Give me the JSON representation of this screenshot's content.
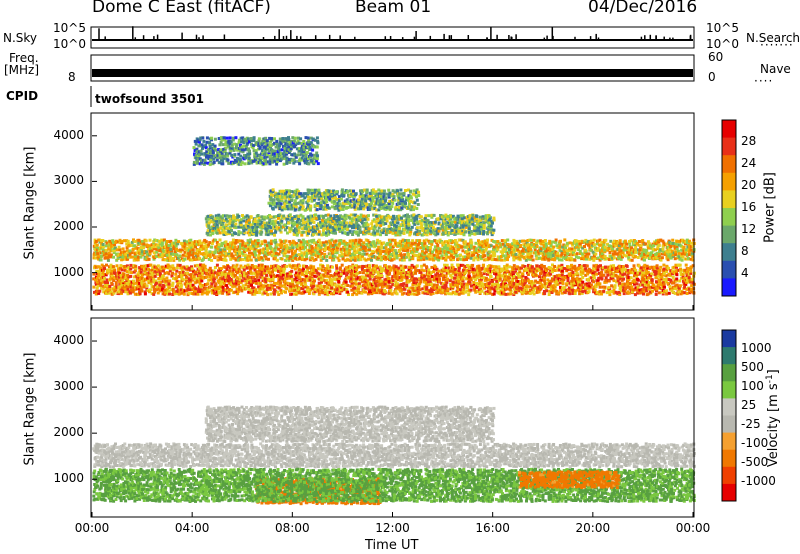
{
  "header": {
    "radar": "Dome C East (fitACF)",
    "beam": "Beam 01",
    "date": "04/Dec/2016"
  },
  "top_panels": {
    "nsky_label": "N.Sky",
    "nsky_tick_top": "10^5",
    "nsky_tick_bottom": "10^0",
    "nsearch_label": "N.Search",
    "freq_label": "Freq.",
    "freq_unit": "[MHz]",
    "freq_tick_low": "8",
    "nave_label": "Nave",
    "nave_tick_top": "60",
    "nave_tick_bottom": "0",
    "cpid_label": "CPID",
    "cpid_value": "twofsound 3501"
  },
  "colors": {
    "power_scale": [
      "#1a1aff",
      "#2a4fb0",
      "#3e7f8f",
      "#6ba86b",
      "#8fcf4f",
      "#e8d020",
      "#f5a000",
      "#f07000",
      "#e83018",
      "#e60000"
    ],
    "velocity_scale": [
      "#e60000",
      "#f04000",
      "#f07800",
      "#f5a030",
      "#b8b8b0",
      "#c8c8c0",
      "#7ac840",
      "#58a040",
      "#2e7a6e",
      "#1a3aa0"
    ]
  },
  "chart_data": [
    {
      "type": "heatmap",
      "title": "Power",
      "xlabel": "",
      "ylabel": "Slant Range [km]",
      "x_ticks": [
        "00:00",
        "04:00",
        "08:00",
        "12:00",
        "16:00",
        "20:00",
        "00:00"
      ],
      "y_ticks": [
        "1000",
        "2000",
        "3000",
        "4000"
      ],
      "ylim": [
        180,
        4500
      ],
      "colorbar": {
        "label": "Power [dB]",
        "ticks": [
          "4",
          "8",
          "12",
          "16",
          "20",
          "24",
          "28"
        ],
        "range": [
          0,
          30
        ]
      },
      "features": [
        {
          "desc": "main band",
          "x_range_h": [
            0,
            24
          ],
          "range_km": [
            1300,
            1750
          ],
          "level": 18
        },
        {
          "desc": "mid band",
          "x_range_h": [
            4.5,
            16
          ],
          "range_km": [
            1850,
            2300
          ],
          "level": 12
        },
        {
          "desc": "lower band",
          "x_range_h": [
            0,
            24
          ],
          "range_km": [
            550,
            1200
          ],
          "level": 22
        },
        {
          "desc": "upper patch",
          "x_range_h": [
            7,
            13
          ],
          "range_km": [
            2400,
            2850
          ],
          "level": 11
        },
        {
          "desc": "high scatter",
          "x_range_h": [
            4,
            9
          ],
          "range_km": [
            3400,
            4000
          ],
          "level": 8
        }
      ]
    },
    {
      "type": "heatmap",
      "title": "Velocity",
      "xlabel": "Time UT",
      "ylabel": "Slant Range [km]",
      "x_ticks": [
        "00:00",
        "04:00",
        "08:00",
        "12:00",
        "16:00",
        "20:00",
        "00:00"
      ],
      "y_ticks": [
        "1000",
        "2000",
        "3000",
        "4000"
      ],
      "ylim": [
        180,
        4500
      ],
      "colorbar": {
        "label": "Velocity [m s^-1]",
        "ticks": [
          "1000",
          "500",
          "100",
          "25",
          "-25",
          "-100",
          "-500",
          "-1000"
        ]
      },
      "features": [
        {
          "desc": "ground scatter band",
          "x_range_h": [
            0,
            24
          ],
          "range_km": [
            1300,
            1800
          ],
          "level": 0
        },
        {
          "desc": "mid grey band",
          "x_range_h": [
            4.5,
            16
          ],
          "range_km": [
            1850,
            2600
          ],
          "level": 0
        },
        {
          "desc": "negative velocity patch",
          "x_range_h": [
            6.5,
            11.5
          ],
          "range_km": [
            500,
            1050
          ],
          "level": -300
        },
        {
          "desc": "positive velocity band",
          "x_range_h": [
            0,
            24
          ],
          "range_km": [
            550,
            1250
          ],
          "level": 120
        },
        {
          "desc": "negative velocity patch late",
          "x_range_h": [
            17,
            21
          ],
          "range_km": [
            850,
            1200
          ],
          "level": -200
        }
      ]
    }
  ]
}
